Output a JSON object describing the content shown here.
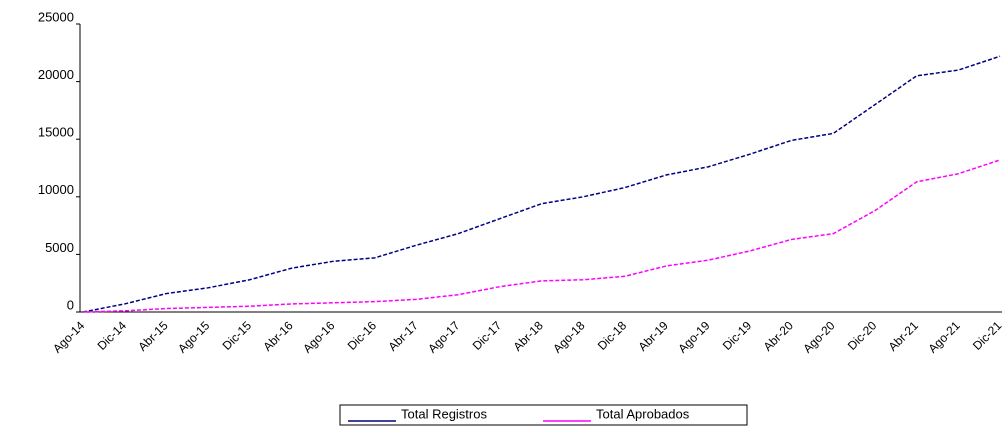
{
  "chart_data": {
    "type": "line",
    "categories": [
      "Ago-14",
      "Dic-14",
      "Abr-15",
      "Ago-15",
      "Dic-15",
      "Abr-16",
      "Ago-16",
      "Dic-16",
      "Abr-17",
      "Ago-17",
      "Dic-17",
      "Abr-18",
      "Ago-18",
      "Dic-18",
      "Abr-19",
      "Ago-19",
      "Dic-19",
      "Abr-20",
      "Ago-20",
      "Dic-20",
      "Abr-21",
      "Ago-21",
      "Dic-21"
    ],
    "series": [
      {
        "name": "Total Registros",
        "color": "#000080",
        "values": [
          0,
          700,
          1600,
          2100,
          2800,
          3800,
          4400,
          4700,
          5800,
          6800,
          8100,
          9400,
          10000,
          10800,
          11900,
          12600,
          13700,
          14900,
          15500,
          18000,
          20500,
          21000,
          22200
        ]
      },
      {
        "name": "Total Aprobados",
        "color": "#ff00ff",
        "values": [
          0,
          100,
          300,
          400,
          500,
          700,
          800,
          900,
          1100,
          1500,
          2200,
          2700,
          2800,
          3100,
          4000,
          4500,
          5300,
          6300,
          6800,
          8800,
          11300,
          12000,
          13200
        ]
      }
    ],
    "ylim": [
      0,
      25000
    ],
    "yticks": [
      0,
      5000,
      10000,
      15000,
      20000,
      25000
    ],
    "grid": false,
    "legend": "bottom"
  }
}
